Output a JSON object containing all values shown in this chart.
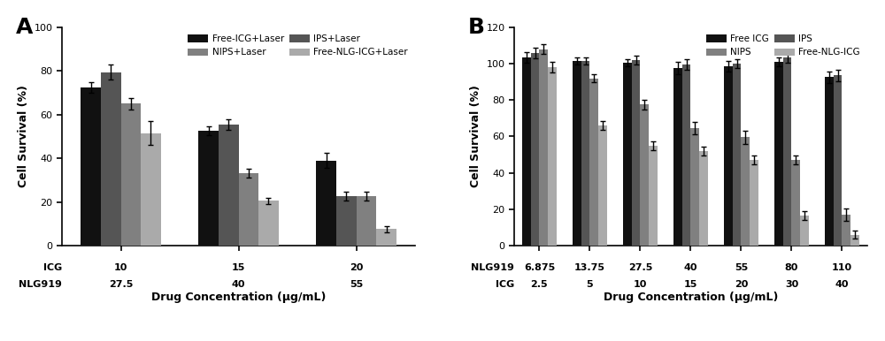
{
  "panel_A": {
    "title": "A",
    "group_labels_top": [
      "10",
      "15",
      "20"
    ],
    "group_labels_bot": [
      "27.5",
      "40",
      "55"
    ],
    "xlabel_top": "ICG",
    "xlabel_bot": "NLG919",
    "ylabel": "Cell Survival (%)",
    "xlabel": "Drug Concentration (μg/mL)",
    "ylim": [
      0,
      100
    ],
    "yticks": [
      0,
      20,
      40,
      60,
      80,
      100
    ],
    "series": {
      "Free-ICG+Laser": {
        "color": "#111111",
        "values": [
          72.5,
          52.5,
          39.0
        ],
        "errors": [
          2.5,
          2.0,
          3.5
        ]
      },
      "IPS+Laser": {
        "color": "#555555",
        "values": [
          79.5,
          55.5,
          22.5
        ],
        "errors": [
          3.5,
          2.5,
          2.0
        ]
      },
      "NIPS+Laser": {
        "color": "#808080",
        "values": [
          65.0,
          33.0,
          22.5
        ],
        "errors": [
          2.5,
          2.0,
          2.0
        ]
      },
      "Free-NLG-ICG+Laser": {
        "color": "#aaaaaa",
        "values": [
          51.5,
          20.5,
          7.5
        ],
        "errors": [
          5.5,
          1.5,
          1.5
        ]
      }
    },
    "legend_order": [
      "Free-ICG+Laser",
      "NIPS+Laser",
      "IPS+Laser",
      "Free-NLG-ICG+Laser"
    ]
  },
  "panel_B": {
    "title": "B",
    "group_labels_top": [
      "6.875",
      "13.75",
      "27.5",
      "40",
      "55",
      "80",
      "110"
    ],
    "group_labels_bot": [
      "2.5",
      "5",
      "10",
      "15",
      "20",
      "30",
      "40"
    ],
    "xlabel_top": "NLG919",
    "xlabel_bot": "ICG",
    "ylabel": "Cell Survival (%)",
    "xlabel": "Drug Concentration (μg/mL)",
    "ylim": [
      0,
      120
    ],
    "yticks": [
      0,
      20,
      40,
      60,
      80,
      100,
      120
    ],
    "series": {
      "Free ICG": {
        "color": "#111111",
        "values": [
          103.5,
          101.5,
          100.5,
          97.5,
          98.5,
          101.0,
          92.5
        ],
        "errors": [
          3.0,
          2.0,
          2.0,
          3.5,
          3.0,
          2.5,
          3.0
        ]
      },
      "IPS": {
        "color": "#555555",
        "values": [
          106.0,
          101.5,
          102.0,
          99.5,
          100.0,
          103.5,
          93.5
        ],
        "errors": [
          3.0,
          2.0,
          2.5,
          3.0,
          2.5,
          3.0,
          3.0
        ]
      },
      "NIPS": {
        "color": "#808080",
        "values": [
          108.0,
          92.0,
          77.5,
          64.5,
          59.5,
          47.0,
          17.0
        ],
        "errors": [
          2.5,
          2.0,
          2.5,
          3.5,
          3.5,
          2.5,
          3.5
        ]
      },
      "Free-NLG-ICG": {
        "color": "#aaaaaa",
        "values": [
          98.0,
          66.0,
          55.0,
          52.0,
          47.0,
          16.5,
          6.0
        ],
        "errors": [
          3.0,
          2.5,
          2.5,
          2.5,
          2.5,
          2.5,
          2.0
        ]
      }
    },
    "legend_order": [
      "Free ICG",
      "NIPS",
      "IPS",
      "Free-NLG-ICG"
    ]
  },
  "fig_width": 10.0,
  "fig_height": 3.86,
  "dpi": 100,
  "background_color": "#ffffff"
}
